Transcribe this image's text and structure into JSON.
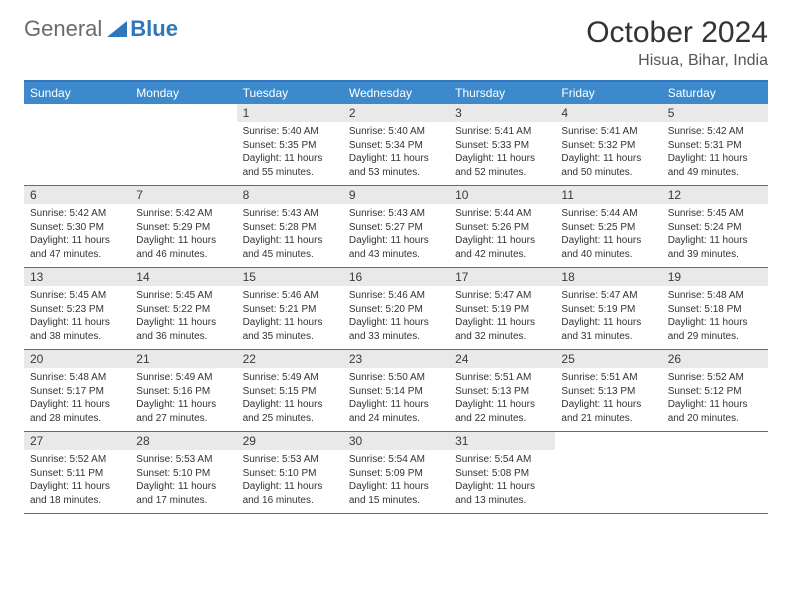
{
  "logo": {
    "text1": "General",
    "text2": "Blue"
  },
  "title": "October 2024",
  "location": "Hisua, Bihar, India",
  "colors": {
    "header_bg": "#3c8acb",
    "border": "#2f76bb",
    "daynum_bg": "#e9e9e9",
    "text": "#333333"
  },
  "weekdays": [
    "Sunday",
    "Monday",
    "Tuesday",
    "Wednesday",
    "Thursday",
    "Friday",
    "Saturday"
  ],
  "weeks": [
    [
      {
        "n": "",
        "sr": "",
        "ss": "",
        "dl": ""
      },
      {
        "n": "",
        "sr": "",
        "ss": "",
        "dl": ""
      },
      {
        "n": "1",
        "sr": "Sunrise: 5:40 AM",
        "ss": "Sunset: 5:35 PM",
        "dl": "Daylight: 11 hours and 55 minutes."
      },
      {
        "n": "2",
        "sr": "Sunrise: 5:40 AM",
        "ss": "Sunset: 5:34 PM",
        "dl": "Daylight: 11 hours and 53 minutes."
      },
      {
        "n": "3",
        "sr": "Sunrise: 5:41 AM",
        "ss": "Sunset: 5:33 PM",
        "dl": "Daylight: 11 hours and 52 minutes."
      },
      {
        "n": "4",
        "sr": "Sunrise: 5:41 AM",
        "ss": "Sunset: 5:32 PM",
        "dl": "Daylight: 11 hours and 50 minutes."
      },
      {
        "n": "5",
        "sr": "Sunrise: 5:42 AM",
        "ss": "Sunset: 5:31 PM",
        "dl": "Daylight: 11 hours and 49 minutes."
      }
    ],
    [
      {
        "n": "6",
        "sr": "Sunrise: 5:42 AM",
        "ss": "Sunset: 5:30 PM",
        "dl": "Daylight: 11 hours and 47 minutes."
      },
      {
        "n": "7",
        "sr": "Sunrise: 5:42 AM",
        "ss": "Sunset: 5:29 PM",
        "dl": "Daylight: 11 hours and 46 minutes."
      },
      {
        "n": "8",
        "sr": "Sunrise: 5:43 AM",
        "ss": "Sunset: 5:28 PM",
        "dl": "Daylight: 11 hours and 45 minutes."
      },
      {
        "n": "9",
        "sr": "Sunrise: 5:43 AM",
        "ss": "Sunset: 5:27 PM",
        "dl": "Daylight: 11 hours and 43 minutes."
      },
      {
        "n": "10",
        "sr": "Sunrise: 5:44 AM",
        "ss": "Sunset: 5:26 PM",
        "dl": "Daylight: 11 hours and 42 minutes."
      },
      {
        "n": "11",
        "sr": "Sunrise: 5:44 AM",
        "ss": "Sunset: 5:25 PM",
        "dl": "Daylight: 11 hours and 40 minutes."
      },
      {
        "n": "12",
        "sr": "Sunrise: 5:45 AM",
        "ss": "Sunset: 5:24 PM",
        "dl": "Daylight: 11 hours and 39 minutes."
      }
    ],
    [
      {
        "n": "13",
        "sr": "Sunrise: 5:45 AM",
        "ss": "Sunset: 5:23 PM",
        "dl": "Daylight: 11 hours and 38 minutes."
      },
      {
        "n": "14",
        "sr": "Sunrise: 5:45 AM",
        "ss": "Sunset: 5:22 PM",
        "dl": "Daylight: 11 hours and 36 minutes."
      },
      {
        "n": "15",
        "sr": "Sunrise: 5:46 AM",
        "ss": "Sunset: 5:21 PM",
        "dl": "Daylight: 11 hours and 35 minutes."
      },
      {
        "n": "16",
        "sr": "Sunrise: 5:46 AM",
        "ss": "Sunset: 5:20 PM",
        "dl": "Daylight: 11 hours and 33 minutes."
      },
      {
        "n": "17",
        "sr": "Sunrise: 5:47 AM",
        "ss": "Sunset: 5:19 PM",
        "dl": "Daylight: 11 hours and 32 minutes."
      },
      {
        "n": "18",
        "sr": "Sunrise: 5:47 AM",
        "ss": "Sunset: 5:19 PM",
        "dl": "Daylight: 11 hours and 31 minutes."
      },
      {
        "n": "19",
        "sr": "Sunrise: 5:48 AM",
        "ss": "Sunset: 5:18 PM",
        "dl": "Daylight: 11 hours and 29 minutes."
      }
    ],
    [
      {
        "n": "20",
        "sr": "Sunrise: 5:48 AM",
        "ss": "Sunset: 5:17 PM",
        "dl": "Daylight: 11 hours and 28 minutes."
      },
      {
        "n": "21",
        "sr": "Sunrise: 5:49 AM",
        "ss": "Sunset: 5:16 PM",
        "dl": "Daylight: 11 hours and 27 minutes."
      },
      {
        "n": "22",
        "sr": "Sunrise: 5:49 AM",
        "ss": "Sunset: 5:15 PM",
        "dl": "Daylight: 11 hours and 25 minutes."
      },
      {
        "n": "23",
        "sr": "Sunrise: 5:50 AM",
        "ss": "Sunset: 5:14 PM",
        "dl": "Daylight: 11 hours and 24 minutes."
      },
      {
        "n": "24",
        "sr": "Sunrise: 5:51 AM",
        "ss": "Sunset: 5:13 PM",
        "dl": "Daylight: 11 hours and 22 minutes."
      },
      {
        "n": "25",
        "sr": "Sunrise: 5:51 AM",
        "ss": "Sunset: 5:13 PM",
        "dl": "Daylight: 11 hours and 21 minutes."
      },
      {
        "n": "26",
        "sr": "Sunrise: 5:52 AM",
        "ss": "Sunset: 5:12 PM",
        "dl": "Daylight: 11 hours and 20 minutes."
      }
    ],
    [
      {
        "n": "27",
        "sr": "Sunrise: 5:52 AM",
        "ss": "Sunset: 5:11 PM",
        "dl": "Daylight: 11 hours and 18 minutes."
      },
      {
        "n": "28",
        "sr": "Sunrise: 5:53 AM",
        "ss": "Sunset: 5:10 PM",
        "dl": "Daylight: 11 hours and 17 minutes."
      },
      {
        "n": "29",
        "sr": "Sunrise: 5:53 AM",
        "ss": "Sunset: 5:10 PM",
        "dl": "Daylight: 11 hours and 16 minutes."
      },
      {
        "n": "30",
        "sr": "Sunrise: 5:54 AM",
        "ss": "Sunset: 5:09 PM",
        "dl": "Daylight: 11 hours and 15 minutes."
      },
      {
        "n": "31",
        "sr": "Sunrise: 5:54 AM",
        "ss": "Sunset: 5:08 PM",
        "dl": "Daylight: 11 hours and 13 minutes."
      },
      {
        "n": "",
        "sr": "",
        "ss": "",
        "dl": ""
      },
      {
        "n": "",
        "sr": "",
        "ss": "",
        "dl": ""
      }
    ]
  ]
}
